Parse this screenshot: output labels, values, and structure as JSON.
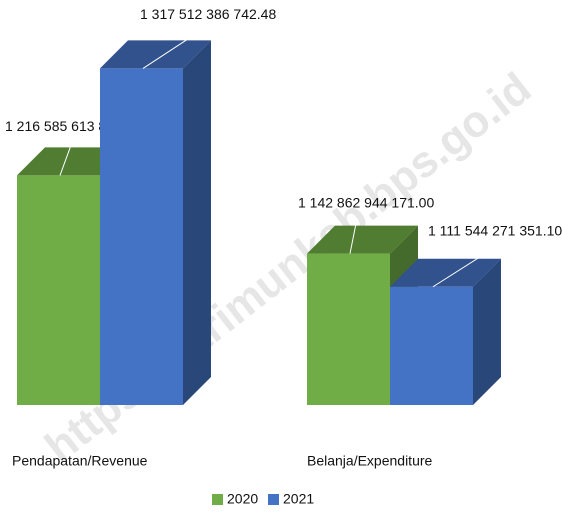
{
  "chart_data": {
    "type": "bar3d",
    "watermark": "https://karimunkab.bps.go.id",
    "categories": [
      "Pendapatan/Revenue",
      "Belanja/Expenditure"
    ],
    "series": [
      {
        "name": "2020",
        "color": "#70ad47",
        "values": [
          1216585613808.19,
          1142862944171.0
        ],
        "value_labels": [
          "1 216 585 613 808.19",
          "1 142 862 944 171.00"
        ]
      },
      {
        "name": "2021",
        "color": "#4472c4",
        "values": [
          1317512386742.48,
          1111544271351.1
        ],
        "value_labels": [
          "1 317 512 386 742.48",
          "1 111 544 271 351.10"
        ]
      }
    ],
    "ylim": [
      1000000000000,
      1350000000000
    ],
    "legend": "bottom"
  }
}
